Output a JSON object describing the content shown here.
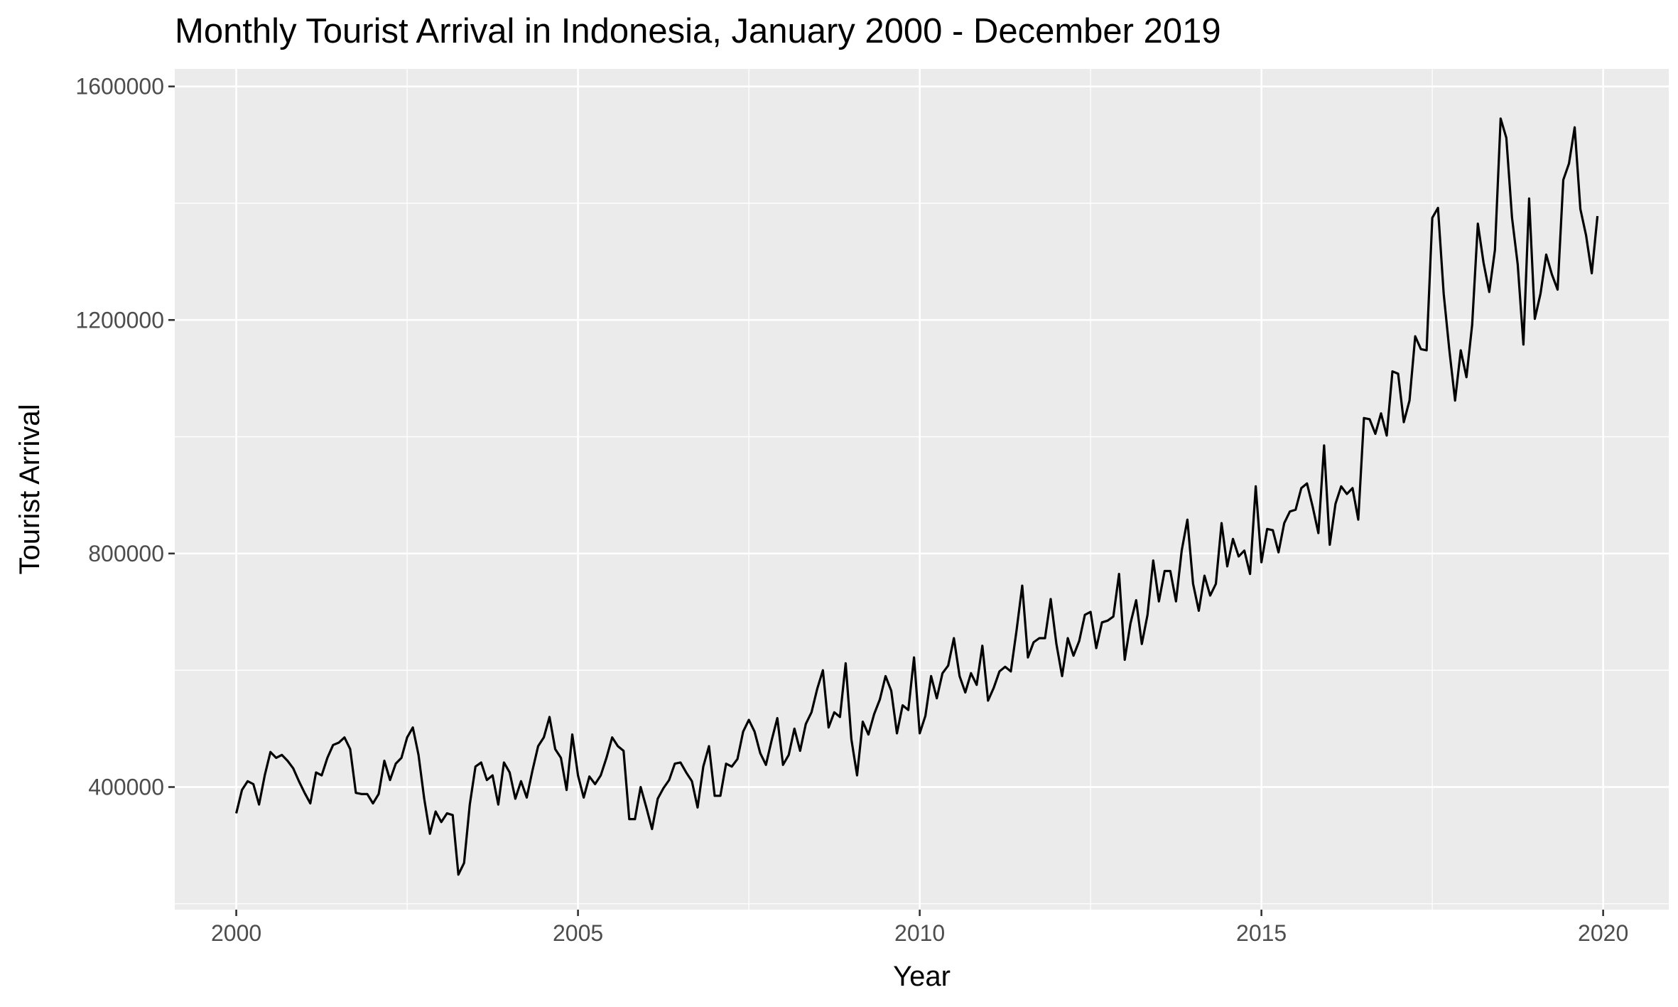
{
  "chart_data": {
    "type": "line",
    "title": "Monthly Tourist Arrival in Indonesia, January 2000 - December 2019",
    "xlabel": "Year",
    "ylabel": "Tourist Arrival",
    "xlim": [
      1999.1,
      2020.96
    ],
    "ylim": [
      190000,
      1630000
    ],
    "x_ticks": [
      2000,
      2005,
      2010,
      2015,
      2020
    ],
    "x_tick_labels": [
      "2000",
      "2005",
      "2010",
      "2015",
      "2020"
    ],
    "y_ticks": [
      400000,
      800000,
      1200000,
      1600000
    ],
    "y_tick_labels": [
      "400000",
      "800000",
      "1200000",
      "1600000"
    ],
    "grid": true,
    "legend": "none",
    "colors": {
      "panel": "#ebebeb",
      "grid": "#ffffff",
      "line": "#000000",
      "tick_text": "#4d4d4d"
    },
    "x_start": "2000-01",
    "frequency": "monthly",
    "series": [
      {
        "values": [
          355000,
          395000,
          410000,
          405000,
          370000,
          420000,
          460000,
          450000,
          455000,
          445000,
          432000,
          410000,
          390000,
          372000,
          425000,
          420000,
          450000,
          472000,
          476000,
          485000,
          465000,
          390000,
          388000,
          388000,
          372000,
          388000,
          445000,
          412000,
          440000,
          450000,
          485000,
          502000,
          455000,
          380000,
          320000,
          358000,
          340000,
          355000,
          352000,
          250000,
          270000,
          370000,
          435000,
          442000,
          412000,
          420000,
          370000,
          442000,
          425000,
          380000,
          410000,
          382000,
          428000,
          470000,
          485000,
          520000,
          465000,
          450000,
          395000,
          490000,
          420000,
          382000,
          418000,
          405000,
          420000,
          450000,
          485000,
          470000,
          462000,
          345000,
          345000,
          400000,
          365000,
          328000,
          380000,
          398000,
          412000,
          440000,
          442000,
          425000,
          410000,
          365000,
          435000,
          470000,
          385000,
          385000,
          440000,
          435000,
          448000,
          495000,
          515000,
          495000,
          458000,
          438000,
          480000,
          518000,
          438000,
          455000,
          500000,
          462000,
          508000,
          528000,
          568000,
          600000,
          502000,
          528000,
          520000,
          612000,
          482000,
          420000,
          512000,
          490000,
          525000,
          550000,
          590000,
          565000,
          492000,
          540000,
          532000,
          622000,
          492000,
          522000,
          590000,
          552000,
          595000,
          608000,
          655000,
          590000,
          562000,
          595000,
          575000,
          642000,
          548000,
          570000,
          598000,
          606000,
          598000,
          668000,
          745000,
          622000,
          648000,
          655000,
          655000,
          722000,
          645000,
          590000,
          655000,
          625000,
          650000,
          695000,
          700000,
          638000,
          682000,
          685000,
          692000,
          765000,
          618000,
          680000,
          720000,
          645000,
          695000,
          788000,
          718000,
          770000,
          770000,
          718000,
          805000,
          858000,
          748000,
          702000,
          762000,
          728000,
          748000,
          852000,
          778000,
          825000,
          795000,
          805000,
          765000,
          915000,
          785000,
          842000,
          840000,
          802000,
          852000,
          872000,
          875000,
          912000,
          920000,
          880000,
          835000,
          985000,
          815000,
          885000,
          915000,
          902000,
          912000,
          858000,
          1032000,
          1030000,
          1005000,
          1040000,
          1002000,
          1112000,
          1108000,
          1025000,
          1062000,
          1172000,
          1150000,
          1148000,
          1375000,
          1392000,
          1245000,
          1148000,
          1062000,
          1148000,
          1102000,
          1192000,
          1365000,
          1298000,
          1248000,
          1320000,
          1545000,
          1512000,
          1375000,
          1295000,
          1158000,
          1408000,
          1202000,
          1245000,
          1312000,
          1278000,
          1252000,
          1440000,
          1468000,
          1530000,
          1390000,
          1345000,
          1280000,
          1378000
        ]
      }
    ]
  }
}
